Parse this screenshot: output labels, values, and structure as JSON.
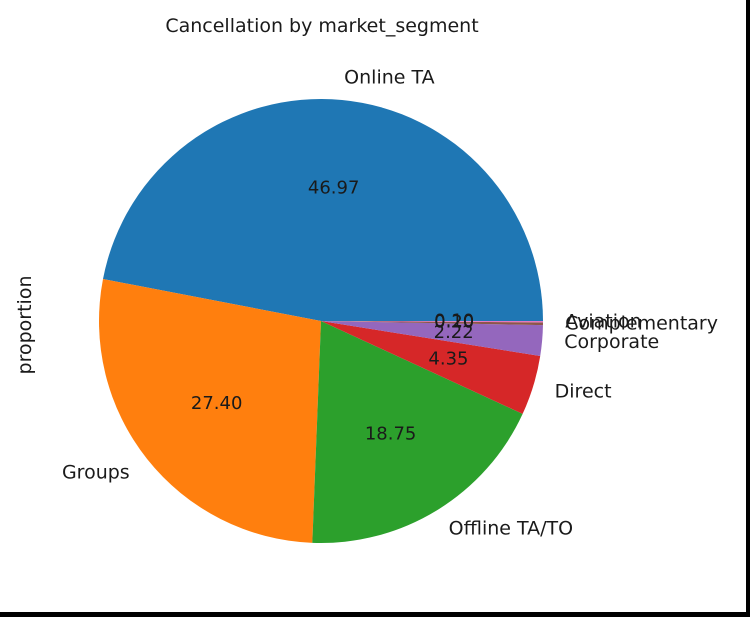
{
  "chart_data": {
    "type": "pie",
    "title": "Cancellation by market_segment",
    "ylabel": "proportion",
    "categories": [
      "Online TA",
      "Groups",
      "Offline TA/TO",
      "Direct",
      "Corporate",
      "Complementary",
      "Aviation"
    ],
    "values": [
      46.97,
      27.4,
      18.75,
      4.35,
      2.22,
      0.2,
      0.1
    ],
    "value_labels": [
      "46.97",
      "27.40",
      "18.75",
      "4.35",
      "2.22",
      "0.20",
      "0.10"
    ],
    "colors": [
      "#1f77b4",
      "#ff7f0e",
      "#2ca02c",
      "#d62728",
      "#9467bd",
      "#8c564b",
      "#e377c2"
    ],
    "start_angle_deg": 0,
    "direction": "counterclockwise",
    "legend": "none"
  }
}
